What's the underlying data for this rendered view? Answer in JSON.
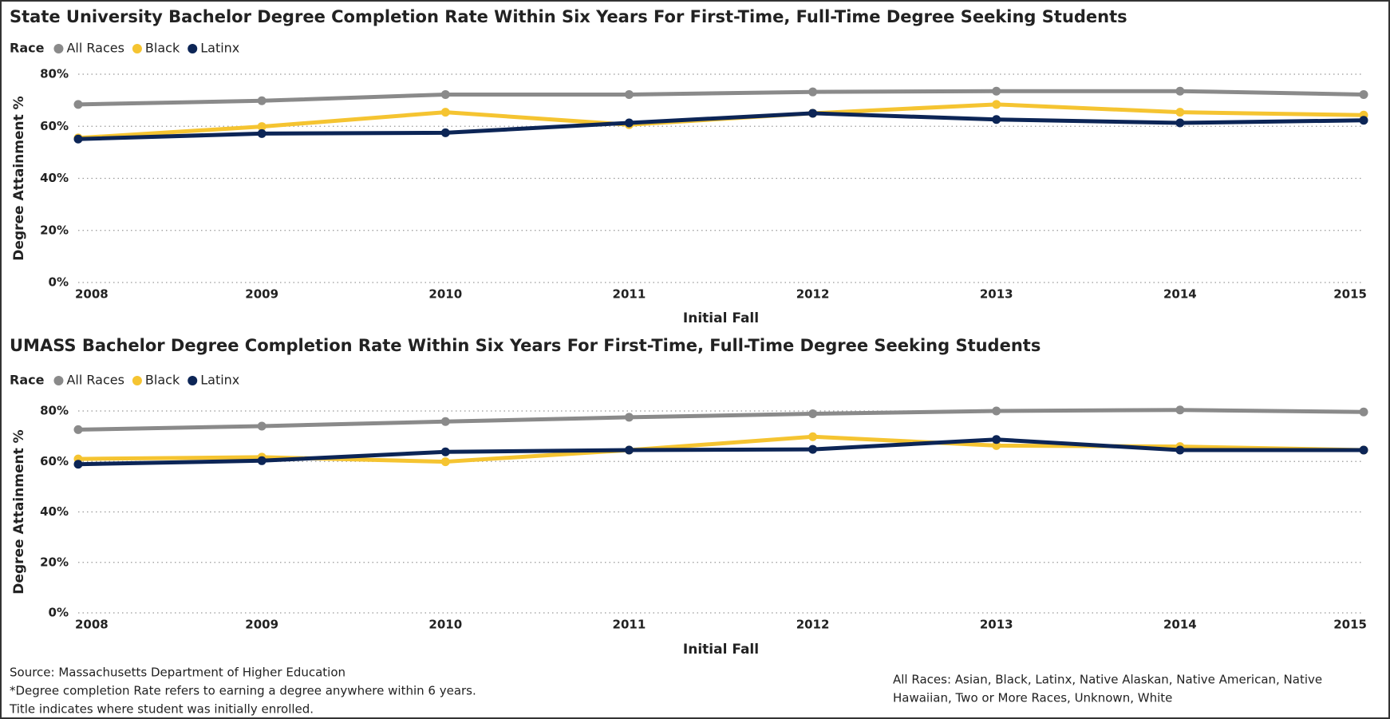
{
  "chart_data": [
    {
      "type": "line",
      "title": "State University Bachelor Degree Completion Rate Within Six Years For First-Time, Full-Time Degree Seeking Students",
      "legend_title": "Race",
      "x_label": "Initial Fall",
      "y_label": "Degree Attainment %",
      "categories": [
        "2008",
        "2009",
        "2010",
        "2011",
        "2012",
        "2013",
        "2014",
        "2015"
      ],
      "ylim": [
        0,
        80
      ],
      "yticks": [
        {
          "value": 0,
          "label": "0%"
        },
        {
          "value": 20,
          "label": "20%"
        },
        {
          "value": 40,
          "label": "40%"
        },
        {
          "value": 60,
          "label": "60%"
        },
        {
          "value": 80,
          "label": "80%"
        }
      ],
      "grid": true,
      "series": [
        {
          "name": "All Races",
          "color": "#8a8a8a",
          "values": [
            68.4,
            69.8,
            72.2,
            72.2,
            73.2,
            73.5,
            73.5,
            72.2
          ]
        },
        {
          "name": "Black",
          "color": "#f5c431",
          "values": [
            55.5,
            59.9,
            65.4,
            60.6,
            65.0,
            68.4,
            65.4,
            64.3
          ]
        },
        {
          "name": "Latinx",
          "color": "#0c2556",
          "values": [
            55.1,
            57.2,
            57.5,
            61.3,
            65.0,
            62.6,
            61.3,
            62.3
          ]
        }
      ]
    },
    {
      "type": "line",
      "title": "UMASS Bachelor Degree Completion Rate Within Six Years For First-Time, Full-Time Degree Seeking Students",
      "legend_title": "Race",
      "x_label": "Initial Fall",
      "y_label": "Degree Attainment %",
      "categories": [
        "2008",
        "2009",
        "2010",
        "2011",
        "2012",
        "2013",
        "2014",
        "2015"
      ],
      "ylim": [
        0,
        80
      ],
      "yticks": [
        {
          "value": 0,
          "label": "0%"
        },
        {
          "value": 20,
          "label": "20%"
        },
        {
          "value": 40,
          "label": "40%"
        },
        {
          "value": 60,
          "label": "60%"
        },
        {
          "value": 80,
          "label": "80%"
        }
      ],
      "grid": true,
      "series": [
        {
          "name": "All Races",
          "color": "#8a8a8a",
          "values": [
            72.6,
            74.0,
            75.8,
            77.5,
            78.9,
            80.0,
            80.4,
            79.6
          ]
        },
        {
          "name": "Black",
          "color": "#f5c431",
          "values": [
            61.0,
            61.7,
            59.9,
            64.5,
            69.8,
            66.3,
            65.9,
            64.5
          ]
        },
        {
          "name": "Latinx",
          "color": "#0c2556",
          "values": [
            58.9,
            60.3,
            63.8,
            64.5,
            64.8,
            68.7,
            64.5,
            64.5
          ]
        }
      ]
    }
  ],
  "footer": {
    "left": [
      "Source: Massachusetts Department of Higher Education",
      "*Degree completion Rate refers to earning a degree anywhere within 6 years.",
      "Title indicates where student was initially enrolled."
    ],
    "right": [
      "All Races: Asian, Black, Latinx, Native Alaskan, Native American, Native",
      "Hawaiian, Two or More Races, Unknown, White"
    ]
  }
}
